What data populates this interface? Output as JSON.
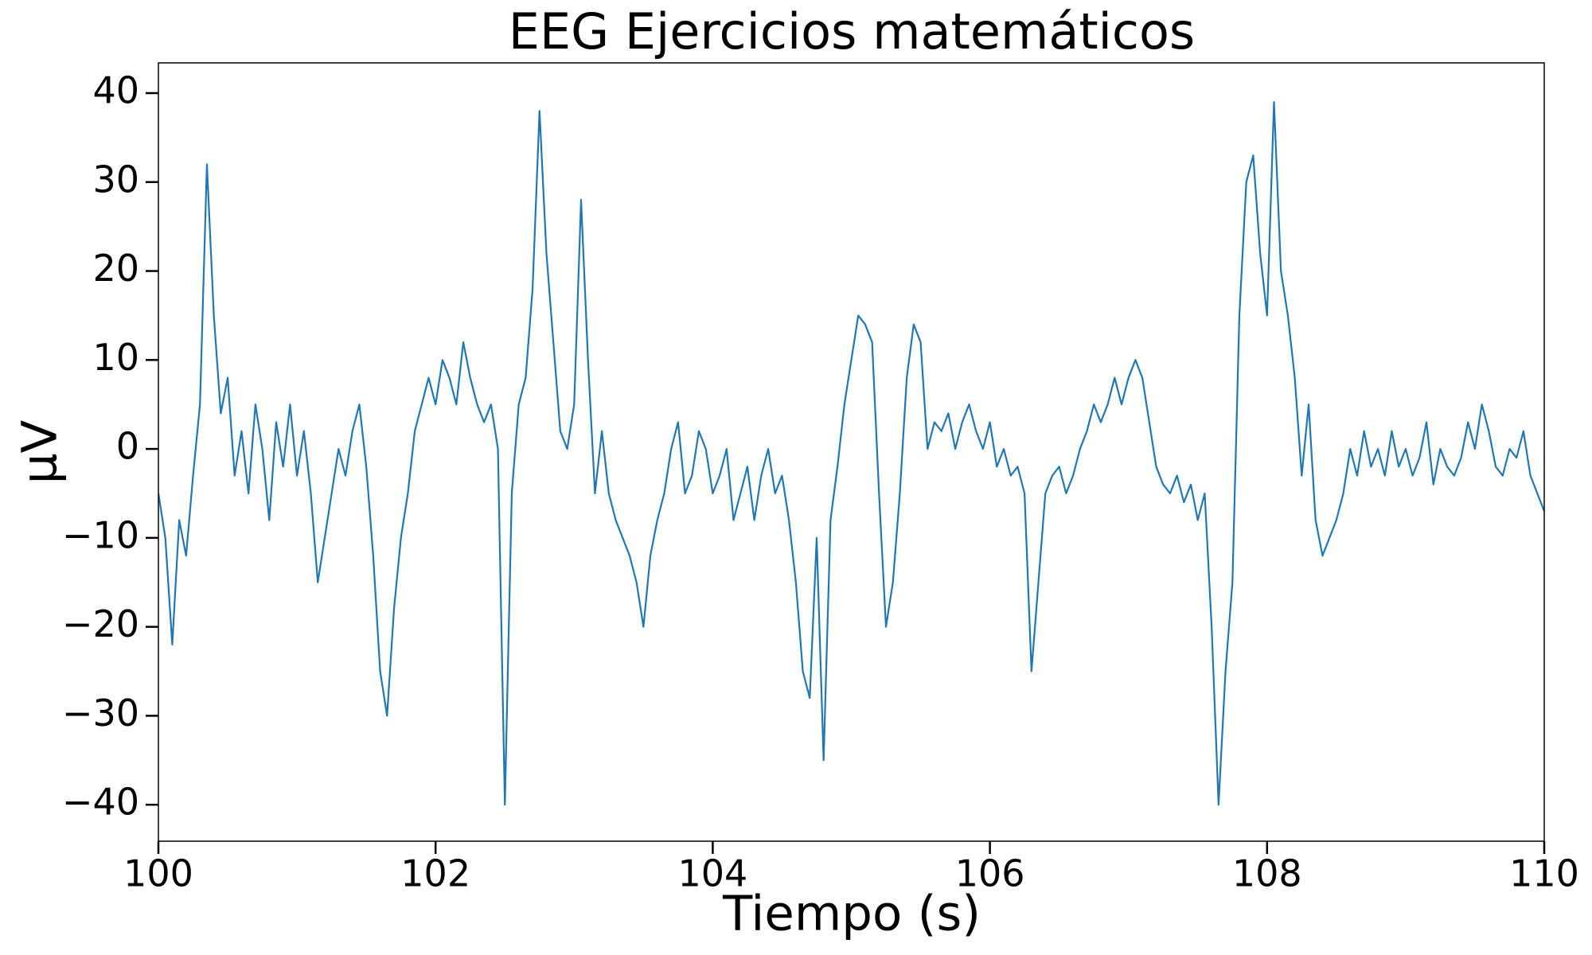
{
  "chart_data": {
    "type": "line",
    "title": "EEG Ejercicios matemáticos",
    "xlabel": "Tiempo (s)",
    "ylabel": "µV",
    "color": "#1f77b4",
    "x": [
      100,
      100.05,
      100.1,
      100.15,
      100.2,
      100.25,
      100.3,
      100.35,
      100.4,
      100.45,
      100.5,
      100.55,
      100.6,
      100.65,
      100.7,
      100.75,
      100.8,
      100.85,
      100.9,
      100.95,
      101,
      101.05,
      101.1,
      101.15,
      101.2,
      101.25,
      101.3,
      101.35,
      101.4,
      101.45,
      101.5,
      101.55,
      101.6,
      101.65,
      101.7,
      101.75,
      101.8,
      101.85,
      101.9,
      101.95,
      102,
      102.05,
      102.1,
      102.15,
      102.2,
      102.25,
      102.3,
      102.35,
      102.4,
      102.45,
      102.5,
      102.55,
      102.6,
      102.65,
      102.7,
      102.75,
      102.8,
      102.85,
      102.9,
      102.95,
      103,
      103.05,
      103.1,
      103.15,
      103.2,
      103.25,
      103.3,
      103.35,
      103.4,
      103.45,
      103.5,
      103.55,
      103.6,
      103.65,
      103.7,
      103.75,
      103.8,
      103.85,
      103.9,
      103.95,
      104,
      104.05,
      104.1,
      104.15,
      104.2,
      104.25,
      104.3,
      104.35,
      104.4,
      104.45,
      104.5,
      104.55,
      104.6,
      104.65,
      104.7,
      104.75,
      104.8,
      104.85,
      104.9,
      104.95,
      105,
      105.05,
      105.1,
      105.15,
      105.2,
      105.25,
      105.3,
      105.35,
      105.4,
      105.45,
      105.5,
      105.55,
      105.6,
      105.65,
      105.7,
      105.75,
      105.8,
      105.85,
      105.9,
      105.95,
      106,
      106.05,
      106.1,
      106.15,
      106.2,
      106.25,
      106.3,
      106.35,
      106.4,
      106.45,
      106.5,
      106.55,
      106.6,
      106.65,
      106.7,
      106.75,
      106.8,
      106.85,
      106.9,
      106.95,
      107,
      107.05,
      107.1,
      107.15,
      107.2,
      107.25,
      107.3,
      107.35,
      107.4,
      107.45,
      107.5,
      107.55,
      107.6,
      107.65,
      107.7,
      107.75,
      107.8,
      107.85,
      107.9,
      107.95,
      108,
      108.05,
      108.1,
      108.15,
      108.2,
      108.25,
      108.3,
      108.35,
      108.4,
      108.45,
      108.5,
      108.55,
      108.6,
      108.65,
      108.7,
      108.75,
      108.8,
      108.85,
      108.9,
      108.95,
      109,
      109.05,
      109.1,
      109.15,
      109.2,
      109.25,
      109.3,
      109.35,
      109.4,
      109.45,
      109.5,
      109.55,
      109.6,
      109.65,
      109.7,
      109.75,
      109.8,
      109.85,
      109.9,
      109.95,
      110
    ],
    "values": [
      -5,
      -10,
      -22,
      -8,
      -12,
      -3,
      5,
      32,
      15,
      4,
      8,
      -3,
      2,
      -5,
      5,
      0,
      -8,
      3,
      -2,
      5,
      -3,
      2,
      -5,
      -15,
      -10,
      -5,
      0,
      -3,
      2,
      5,
      -2,
      -12,
      -25,
      -30,
      -18,
      -10,
      -5,
      2,
      5,
      8,
      5,
      10,
      8,
      5,
      12,
      8,
      5,
      3,
      5,
      0,
      -40,
      -5,
      5,
      8,
      18,
      38,
      22,
      12,
      2,
      0,
      5,
      28,
      10,
      -5,
      2,
      -5,
      -8,
      -10,
      -12,
      -15,
      -20,
      -12,
      -8,
      -5,
      0,
      3,
      -5,
      -3,
      2,
      0,
      -5,
      -3,
      0,
      -8,
      -5,
      -2,
      -8,
      -3,
      0,
      -5,
      -3,
      -8,
      -15,
      -25,
      -28,
      -10,
      -35,
      -8,
      -2,
      5,
      10,
      15,
      14,
      12,
      -5,
      -20,
      -15,
      -5,
      8,
      14,
      12,
      0,
      3,
      2,
      4,
      0,
      3,
      5,
      2,
      0,
      3,
      -2,
      0,
      -3,
      -2,
      -5,
      -25,
      -15,
      -5,
      -3,
      -2,
      -5,
      -3,
      0,
      2,
      5,
      3,
      5,
      8,
      5,
      8,
      10,
      8,
      3,
      -2,
      -4,
      -5,
      -3,
      -6,
      -4,
      -8,
      -5,
      -20,
      -40,
      -25,
      -15,
      15,
      30,
      33,
      22,
      15,
      39,
      20,
      15,
      8,
      -3,
      5,
      -8,
      -12,
      -10,
      -8,
      -5,
      0,
      -3,
      2,
      -2,
      0,
      -3,
      2,
      -2,
      0,
      -3,
      -1,
      3,
      -4,
      0,
      -2,
      -3,
      -1,
      3,
      0,
      5,
      2,
      -2,
      -3,
      0,
      -1,
      2,
      -3,
      -5,
      -7
    ],
    "xlim": [
      100,
      110
    ],
    "xticks": [
      100,
      102,
      104,
      106,
      108,
      110
    ],
    "ylim": [
      -44.1,
      43.4
    ],
    "yticks": [
      {
        "value": -40,
        "label": "−40"
      },
      {
        "value": -30,
        "label": "−30"
      },
      {
        "value": -20,
        "label": "−20"
      },
      {
        "value": -10,
        "label": "−10"
      },
      0,
      10,
      20,
      30,
      40
    ],
    "grid": false
  }
}
